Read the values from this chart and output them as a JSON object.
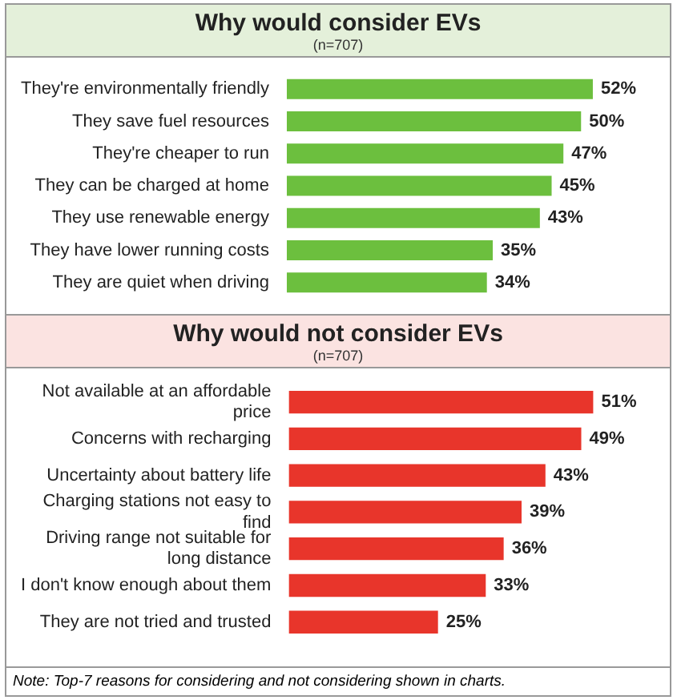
{
  "chart_data": [
    {
      "type": "bar",
      "orientation": "horizontal",
      "title": "Why would consider EVs",
      "subtitle": "(n=707)",
      "categories": [
        "They're environmentally friendly",
        "They save fuel resources",
        "They're cheaper to run",
        "They can be charged at home",
        "They use renewable energy",
        "They have lower running costs",
        "They are quiet when driving"
      ],
      "values": [
        52,
        50,
        47,
        45,
        43,
        35,
        34
      ],
      "value_labels": [
        "52%",
        "50%",
        "47%",
        "45%",
        "43%",
        "35%",
        "34%"
      ],
      "color": "#6cbf3e"
    },
    {
      "type": "bar",
      "orientation": "horizontal",
      "title": "Why would not consider EVs",
      "subtitle": "(n=707)",
      "categories": [
        "Not available at an affordable price",
        "Concerns with recharging",
        "Uncertainty about battery life",
        "Charging stations not easy to find",
        "Driving range not suitable for long distance",
        "I don't know enough about them",
        "They are not tried and trusted"
      ],
      "values": [
        51,
        49,
        43,
        39,
        36,
        33,
        25
      ],
      "value_labels": [
        "51%",
        "49%",
        "43%",
        "39%",
        "36%",
        "33%",
        "25%"
      ],
      "color": "#e8352b",
      "annotations": [
        "Note: Top-7 reasons for considering and not considering shown in charts."
      ]
    }
  ]
}
